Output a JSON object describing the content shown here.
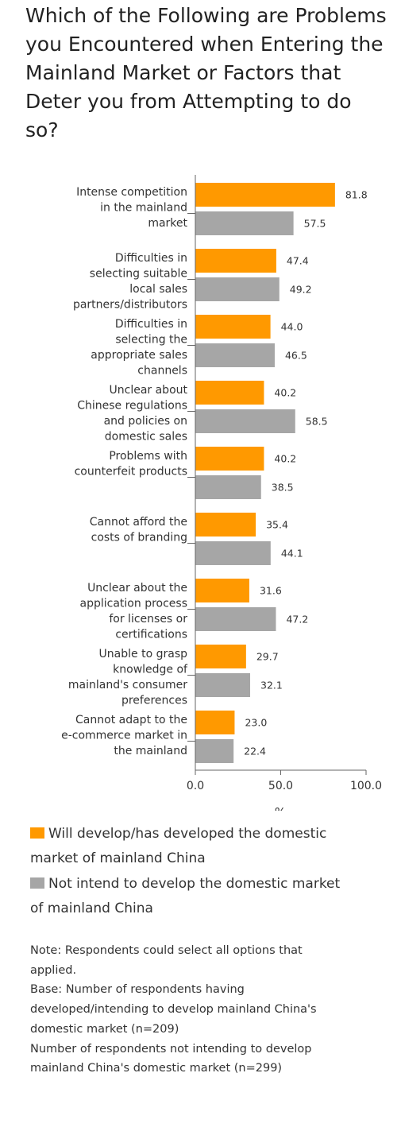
{
  "title": "Which of the Following are Problems you Encountered when Entering the Mainland Market or Factors that Deter you from Attempting to do so?",
  "chart_data": {
    "type": "bar",
    "orientation": "horizontal",
    "categories": [
      [
        "Intense competition",
        "in the mainland",
        "market"
      ],
      [
        "Difficulties in",
        "selecting suitable",
        "local sales",
        "partners/distributors"
      ],
      [
        "Difficulties in",
        "selecting the",
        "appropriate sales",
        "channels"
      ],
      [
        "Unclear about",
        "Chinese regulations",
        "and policies on",
        "domestic sales"
      ],
      [
        "Problems with",
        "counterfeit products"
      ],
      [
        "Cannot afford the",
        "costs of branding"
      ],
      [
        "Unclear about the",
        "application process",
        "for licenses or",
        "certifications"
      ],
      [
        "Unable to grasp",
        "knowledge of",
        "mainland's consumer",
        "preferences"
      ],
      [
        "Cannot adapt to the",
        "e-commerce market in",
        "the mainland"
      ]
    ],
    "series": [
      {
        "name": "Will develop/has developed the domestic market of mainland China",
        "color": "#ff9900",
        "values": [
          81.8,
          47.4,
          44.0,
          40.2,
          40.2,
          35.4,
          31.6,
          29.7,
          23.0
        ],
        "labels": [
          "81.8",
          "47.4",
          "44.0",
          "40.2",
          "40.2",
          "35.4",
          "31.6",
          "29.7",
          "23.0"
        ]
      },
      {
        "name": "Not intend to develop the domestic market of mainland China",
        "color": "#a6a6a6",
        "values": [
          57.5,
          49.2,
          46.5,
          58.5,
          38.5,
          44.1,
          47.2,
          32.1,
          22.4
        ],
        "labels": [
          "57.5",
          "49.2",
          "46.5",
          "58.5",
          "38.5",
          "44.1",
          "47.2",
          "32.1",
          "22.4"
        ]
      }
    ],
    "xlim": [
      0,
      100
    ],
    "xticks": [
      "0.0",
      "50.0",
      "100.0"
    ],
    "xlabel": "%",
    "legend_position": "bottom"
  },
  "legend": {
    "item1_line1": "Will develop/has developed the domestic",
    "item1_line2": "market of mainland China",
    "item2_line1": "Not intend to develop the domestic market",
    "item2_line2": "of mainland China"
  },
  "note": {
    "line1": "Note: Respondents could select all options that",
    "line2": "applied.",
    "line3": "Base: Number of respondents having",
    "line4": "developed/intending to develop mainland China's",
    "line5": "domestic market (n=209)",
    "line6": "Number of respondents not intending to develop",
    "line7": "mainland China's domestic market (n=299)"
  }
}
